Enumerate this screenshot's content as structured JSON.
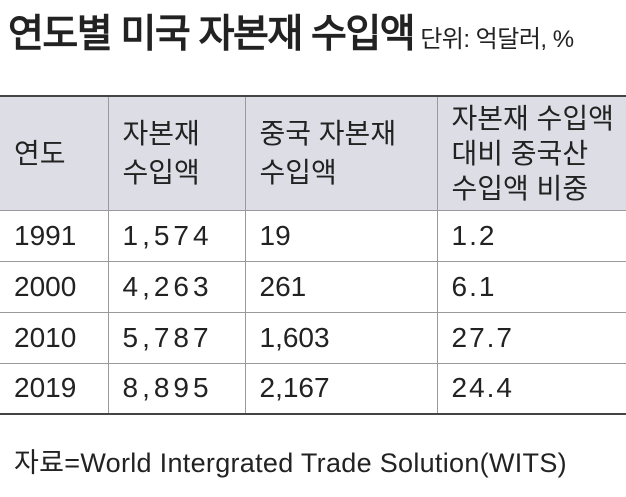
{
  "colors": {
    "background": "#ffffff",
    "header_bg": "#dddde6",
    "text": "#222222",
    "rule_strong": "#444444",
    "rule": "#9a9a9a"
  },
  "chart_data": {
    "type": "table",
    "title": "연도별 미국 자본재 수입액",
    "unit": "단위: 억달러, %",
    "header_lines": [
      [
        "연도"
      ],
      [
        "자본재",
        "수입액"
      ],
      [
        "중국 자본재",
        "수입액"
      ],
      [
        "자본재 수입액",
        "대비 중국산",
        "수입액 비중"
      ]
    ],
    "rows": [
      [
        1991,
        1574,
        19,
        1.2
      ],
      [
        2000,
        4263,
        261,
        6.1
      ],
      [
        2010,
        5787,
        1603,
        27.7
      ],
      [
        2019,
        8895,
        2167,
        24.4
      ]
    ],
    "source": "자료=World Intergrated Trade Solution(WITS)"
  }
}
